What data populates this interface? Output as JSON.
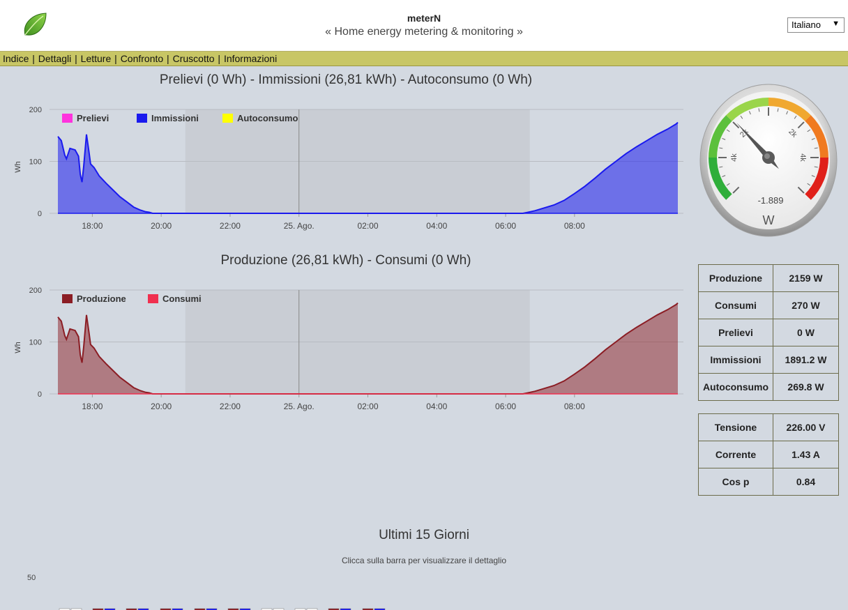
{
  "header": {
    "title": "meterN",
    "subtitle": "« Home energy metering & monitoring »",
    "language": "Italiano"
  },
  "nav": {
    "items": [
      "Indice",
      "Dettagli",
      "Letture",
      "Confronto",
      "Cruscotto",
      "Informazioni"
    ]
  },
  "chart1": {
    "title": "Prelievi (0 Wh) - Immissioni (26,81 kWh) - Autoconsumo (0 Wh)"
  },
  "chart2": {
    "title": "Produzione (26,81 kWh) - Consumi (0 Wh)"
  },
  "gauge": {
    "value_text": "-1.889",
    "unit": "W",
    "labels": [
      "2k",
      "2k",
      "4k",
      "4k"
    ],
    "value": -1889
  },
  "stats": [
    {
      "label": "Produzione",
      "value": "2159 W"
    },
    {
      "label": "Consumi",
      "value": "270 W"
    },
    {
      "label": "Prelievi",
      "value": "0 W"
    },
    {
      "label": "Immissioni",
      "value": "1891.2 W"
    },
    {
      "label": "Autoconsumo",
      "value": "269.8 W"
    }
  ],
  "electrical": [
    {
      "label": "Tensione",
      "value": "226.00 V"
    },
    {
      "label": "Corrente",
      "value": "1.43 A"
    },
    {
      "label": "Cos p",
      "value": "0.84"
    }
  ],
  "history": {
    "title": "Ultimi 15 Giorni",
    "subtitle": "Clicca sulla barra per visualizzare il dettaglio",
    "ytick_top": "50"
  },
  "chart_data": [
    {
      "type": "area",
      "title": "Prelievi (0 Wh) - Immissioni (26,81 kWh) - Autoconsumo (0 Wh)",
      "xlabel": "",
      "ylabel": "Wh",
      "ylim": [
        0,
        200
      ],
      "yticks": [
        "0",
        "100",
        "200"
      ],
      "xticks": [
        "18:00",
        "20:00",
        "22:00",
        "25. Ago.",
        "02:00",
        "04:00",
        "06:00",
        "08:00"
      ],
      "legend_position": "top-left",
      "colors": {
        "Prelievi": "#ff33dd",
        "Immissioni": "#1a1aee",
        "Autoconsumo": "#ffff00"
      },
      "series": [
        {
          "name": "Prelievi",
          "points": []
        },
        {
          "name": "Immissioni",
          "points": [
            [
              17.0,
              148
            ],
            [
              17.1,
              140
            ],
            [
              17.2,
              112
            ],
            [
              17.25,
              105
            ],
            [
              17.35,
              125
            ],
            [
              17.5,
              122
            ],
            [
              17.6,
              110
            ],
            [
              17.65,
              75
            ],
            [
              17.7,
              60
            ],
            [
              17.75,
              90
            ],
            [
              17.83,
              152
            ],
            [
              17.9,
              120
            ],
            [
              17.95,
              95
            ],
            [
              18.05,
              88
            ],
            [
              18.2,
              72
            ],
            [
              18.4,
              58
            ],
            [
              18.6,
              45
            ],
            [
              18.8,
              32
            ],
            [
              19.0,
              22
            ],
            [
              19.2,
              12
            ],
            [
              19.4,
              6
            ],
            [
              19.55,
              3
            ],
            [
              19.65,
              2
            ],
            [
              19.75,
              0
            ],
            [
              30.5,
              0
            ],
            [
              30.65,
              2
            ],
            [
              30.85,
              5
            ],
            [
              31.1,
              10
            ],
            [
              31.4,
              16
            ],
            [
              31.7,
              25
            ],
            [
              32.0,
              38
            ],
            [
              32.3,
              52
            ],
            [
              32.6,
              68
            ],
            [
              32.9,
              85
            ],
            [
              33.2,
              100
            ],
            [
              33.5,
              115
            ],
            [
              33.8,
              128
            ],
            [
              34.1,
              140
            ],
            [
              34.4,
              152
            ],
            [
              34.7,
              162
            ],
            [
              34.85,
              168
            ],
            [
              34.95,
              172
            ],
            [
              35.0,
              175
            ]
          ]
        },
        {
          "name": "Autoconsumo",
          "points": []
        }
      ]
    },
    {
      "type": "area",
      "title": "Produzione (26,81 kWh) - Consumi (0 Wh)",
      "xlabel": "",
      "ylabel": "Wh",
      "ylim": [
        0,
        200
      ],
      "yticks": [
        "0",
        "100",
        "200"
      ],
      "xticks": [
        "18:00",
        "20:00",
        "22:00",
        "25. Ago.",
        "02:00",
        "04:00",
        "06:00",
        "08:00"
      ],
      "legend_position": "top-left",
      "colors": {
        "Produzione": "#8b1d24",
        "Consumi": "#f0304f"
      },
      "series": [
        {
          "name": "Produzione",
          "points": [
            [
              17.0,
              148
            ],
            [
              17.1,
              140
            ],
            [
              17.2,
              112
            ],
            [
              17.25,
              105
            ],
            [
              17.35,
              125
            ],
            [
              17.5,
              122
            ],
            [
              17.6,
              110
            ],
            [
              17.65,
              75
            ],
            [
              17.7,
              60
            ],
            [
              17.75,
              90
            ],
            [
              17.83,
              152
            ],
            [
              17.9,
              120
            ],
            [
              17.95,
              95
            ],
            [
              18.05,
              88
            ],
            [
              18.2,
              72
            ],
            [
              18.4,
              58
            ],
            [
              18.6,
              45
            ],
            [
              18.8,
              32
            ],
            [
              19.0,
              22
            ],
            [
              19.2,
              12
            ],
            [
              19.4,
              6
            ],
            [
              19.55,
              3
            ],
            [
              19.65,
              2
            ],
            [
              19.75,
              0
            ],
            [
              30.5,
              0
            ],
            [
              30.65,
              2
            ],
            [
              30.85,
              5
            ],
            [
              31.1,
              10
            ],
            [
              31.4,
              16
            ],
            [
              31.7,
              25
            ],
            [
              32.0,
              38
            ],
            [
              32.3,
              52
            ],
            [
              32.6,
              68
            ],
            [
              32.9,
              85
            ],
            [
              33.2,
              100
            ],
            [
              33.5,
              115
            ],
            [
              33.8,
              128
            ],
            [
              34.1,
              140
            ],
            [
              34.4,
              152
            ],
            [
              34.7,
              162
            ],
            [
              34.85,
              168
            ],
            [
              34.95,
              172
            ],
            [
              35.0,
              175
            ]
          ]
        },
        {
          "name": "Consumi",
          "points": []
        }
      ]
    }
  ]
}
